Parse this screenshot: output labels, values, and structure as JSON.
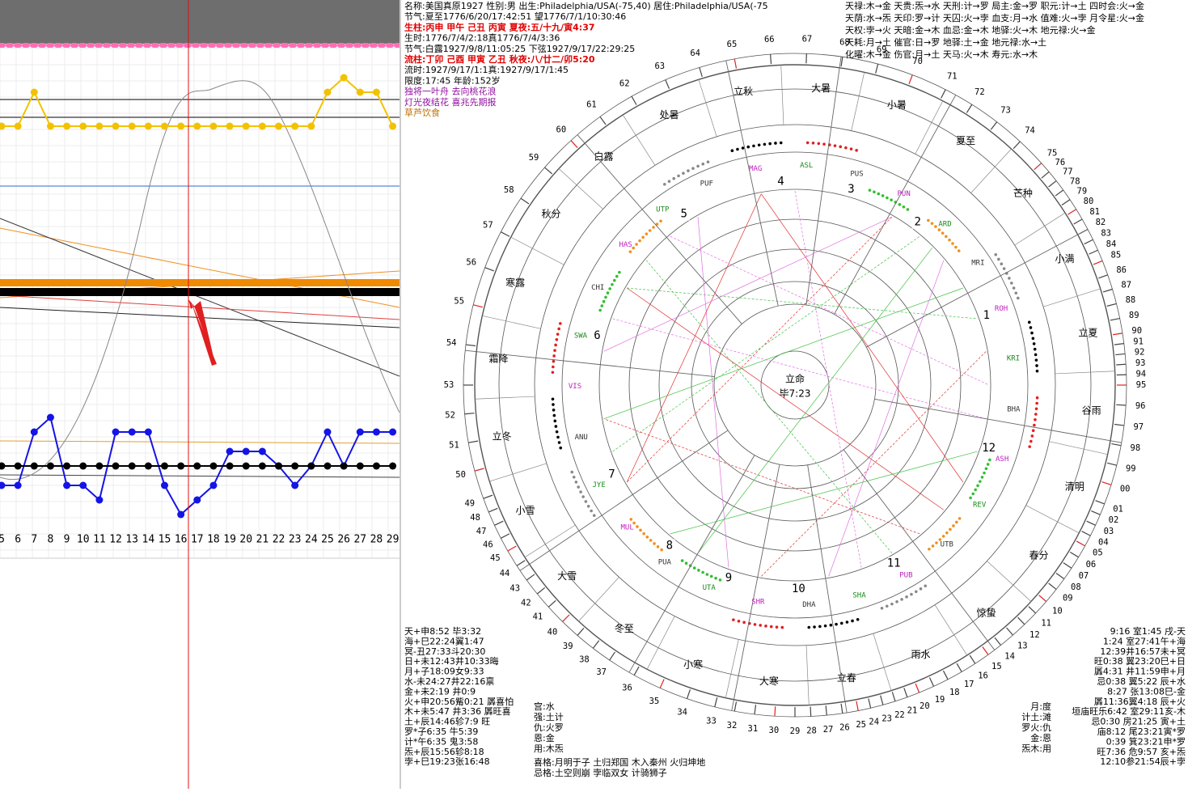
{
  "chart_data": {
    "type": "line",
    "categories": [
      5,
      6,
      7,
      8,
      9,
      10,
      11,
      12,
      13,
      14,
      15,
      16,
      17,
      18,
      19,
      20,
      21,
      22,
      23,
      24,
      25,
      26,
      27,
      28,
      29
    ],
    "ylim": [
      0,
      100
    ],
    "series": [
      {
        "color": "#f2c200",
        "values": [
          84,
          84,
          91,
          84,
          84,
          84,
          84,
          84,
          84,
          84,
          84,
          84,
          84,
          84,
          84,
          84,
          84,
          84,
          84,
          84,
          91,
          94,
          91,
          91,
          84
        ]
      },
      {
        "color": "#1414e6",
        "values": [
          10,
          10,
          21,
          24,
          10,
          10,
          7,
          21,
          21,
          21,
          10,
          4,
          7,
          10,
          17,
          17,
          17,
          14,
          10,
          14,
          21,
          14,
          21,
          21,
          21
        ]
      },
      {
        "color": "#000000",
        "values": [
          14,
          14,
          14,
          14,
          14,
          14,
          14,
          14,
          14,
          14,
          14,
          14,
          14,
          14,
          14,
          14,
          14,
          14,
          14,
          14,
          14,
          14,
          14,
          14,
          14
        ]
      }
    ]
  },
  "header_lines": [
    {
      "text": "名称:美国真原1927 性别:男 出生:Philadelphia/USA(-75,40) 居住:Philadelphia/USA(-75",
      "color": "#000000"
    },
    {
      "text": "节气:夏至1776/6/20/17:42:51 望1776/7/1/10:30:46",
      "color": "#000000"
    },
    {
      "text": "生柱:丙申 甲午 己丑 丙寅 夏夜:五/十九/寅4:37",
      "color": "#e00000"
    },
    {
      "text": "生时:1776/7/4/2:18真1776/7/4/3:36",
      "color": "#000000"
    },
    {
      "text": "节气:白露1927/9/8/11:05:25 下弦1927/9/17/22:29:25",
      "color": "#000000"
    },
    {
      "text": "流柱:丁卯 己酉 甲寅 乙丑 秋夜:八/廿二/卯5:20",
      "color": "#e00000"
    },
    {
      "text": "流时:1927/9/17/1:1真:1927/9/17/1:45",
      "color": "#000000"
    },
    {
      "text": "限度:17:45 年龄:152岁",
      "color": "#000000"
    },
    {
      "text": "独将一叶舟 去向桃花浪",
      "color": "#9010a0"
    },
    {
      "text": "灯光夜结花 喜兆先期报",
      "color": "#9010a0"
    },
    {
      "text": "草芦饮食",
      "color": "#c07000"
    }
  ],
  "right_lines": [
    "天禄:木→金 天贵:炁→水 天刑:计→罗 局主:金→罗 职元:计→土 四时会:火→金",
    "天荫:水→炁 天印:罗→计 天囚:火→孛 血支:月→水 值难:火→孛 月令星:火→金",
    "天权:孛→火 天暗:金→木 血忌:金→木 地驿:火→木 地元禄:火→金",
    "天耗:月→土 催官:日→罗 地驿:土→金 地元禄:水→土",
    "化曜:木→金 伤官:月→土 天马:火→木 寿元:水→木"
  ],
  "bottom_left_lines": [
    "天+申8:52 毕3:32",
    "海+巳22:24翼1:47",
    "冥-丑27:33斗20:30",
    "日+未12:43井10:33晦",
    "月+子18:09女9:33",
    "水-未24:27井22:16禀",
    "金+未2:19 井0:9",
    "火+申20:56觜0:21 羼喜怕",
    "木+未5:47 井3:36 羼旺喜",
    "土+辰14:46轸7:9 旺",
    "罗*子6:35 牛5:39",
    "计*午6:35 鬼3:58",
    "炁+辰15:56轸8:18",
    "孛+巳19:23张16:48"
  ],
  "bottom_middle_lines": [
    "宫:水",
    "强:土计",
    "仇:火罗",
    "恩:金",
    "用:木炁"
  ],
  "bottom_pattern_lines": [
    "喜格:月明于子 土归郑国 木入秦州 火归坤地",
    "忌格:土空则崩 孛临双女 计骑狮子"
  ],
  "bottom_right_lines": [
    "9:16 室1:45 戌-天",
    "1:24 室27:41午+海",
    "12:39井16:57未+冥",
    "旺0:38 翼23:20巳+日",
    "羼4:31 井11:59申+月",
    "忌0:38 翼5:22 辰+水",
    "8:27 张13:08巳-金",
    "羼11:36翼4:18 辰+火",
    "垣庙旺乐6:42 室29:11亥-木",
    "忌0:30 房21:25 寅+土",
    "庙8:12 尾23:21寅*罗",
    "0:39 箕23:21申*罗",
    "旺7:36 危9:57 亥+炁",
    "12:10参21:54辰+孛"
  ],
  "bottom_right_column": [
    "月:度",
    "计土:滩",
    "罗火:仇",
    "金:恩",
    "炁木:用"
  ],
  "wheel": {
    "degree_labels": [
      "00",
      "01",
      "02",
      "03",
      "04",
      "05",
      "06",
      "07",
      "08",
      "09",
      "10",
      "11",
      "12",
      "13",
      "14",
      "15",
      "16",
      "17",
      "18",
      "19",
      "20",
      "21",
      "22",
      "23",
      "24",
      "25",
      "26",
      "27",
      "28",
      "29",
      "30",
      "31",
      "32",
      "33",
      "34",
      "35",
      "36",
      "37",
      "38",
      "39",
      "40",
      "41",
      "42",
      "43",
      "44",
      "45",
      "46",
      "47",
      "48",
      "49",
      "50",
      "51",
      "52",
      "53",
      "54",
      "55",
      "56",
      "57",
      "58",
      "59",
      "60",
      "61",
      "62",
      "63",
      "64",
      "65",
      "66",
      "67",
      "68",
      "69",
      "70",
      "71",
      "72",
      "73",
      "74",
      "75",
      "76",
      "77",
      "78",
      "79",
      "80",
      "81",
      "82",
      "83",
      "84",
      "85",
      "86",
      "87",
      "88",
      "89",
      "90",
      "91",
      "92",
      "93",
      "94",
      "95",
      "96",
      "97",
      "98",
      "99"
    ],
    "solar_terms": [
      "小暑",
      "大暑",
      "立秋",
      "处暑",
      "白露",
      "秋分",
      "寒露",
      "霜降",
      "立冬",
      "小雪",
      "大雪",
      "冬至",
      "小寒",
      "大寒",
      "立春",
      "雨水",
      "惊蛰",
      "春分",
      "清明",
      "谷雨",
      "立夏",
      "小满",
      "芒种",
      "夏至"
    ],
    "nakshatras": [
      "ASL",
      "PUS",
      "PUN",
      "ARD",
      "MRI",
      "ROH",
      "KRI",
      "BHA",
      "ASH",
      "REV",
      "UTB",
      "PUB",
      "SHA",
      "DHA",
      "SHR",
      "UTA",
      "PUA",
      "MUL",
      "JYE",
      "ANU",
      "VIS",
      "SWA",
      "CHI",
      "HAS",
      "UTP",
      "PUF",
      "MAG"
    ],
    "houses": [
      1,
      2,
      3,
      4,
      5,
      6,
      7,
      8,
      9,
      10,
      11,
      12
    ],
    "center": [
      "立命",
      "毕7:23"
    ]
  }
}
